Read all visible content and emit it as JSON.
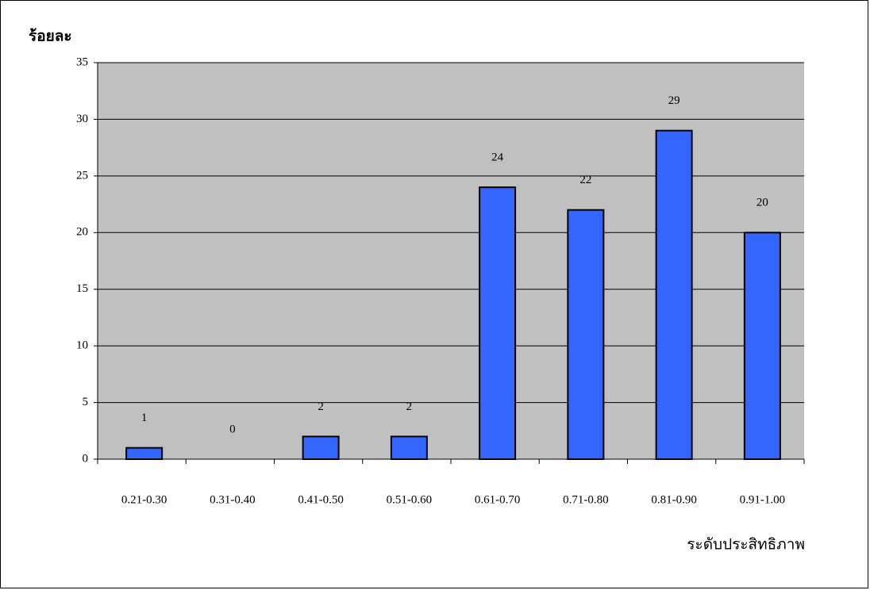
{
  "chart_data": {
    "type": "bar",
    "y_axis_label": "ร้อยละ",
    "x_axis_label": "ระดับประสิทธิภาพ",
    "categories": [
      "0.21-0.30",
      "0.31-0.40",
      "0.41-0.50",
      "0.51-0.60",
      "0.61-0.70",
      "0.71-0.80",
      "0.81-0.90",
      "0.91-1.00"
    ],
    "values": [
      1,
      0,
      2,
      2,
      24,
      22,
      29,
      20
    ],
    "color": "#3366ff",
    "ylim": [
      0,
      35
    ],
    "yticks": [
      0,
      5,
      10,
      15,
      20,
      25,
      30,
      35
    ],
    "grid": true
  }
}
